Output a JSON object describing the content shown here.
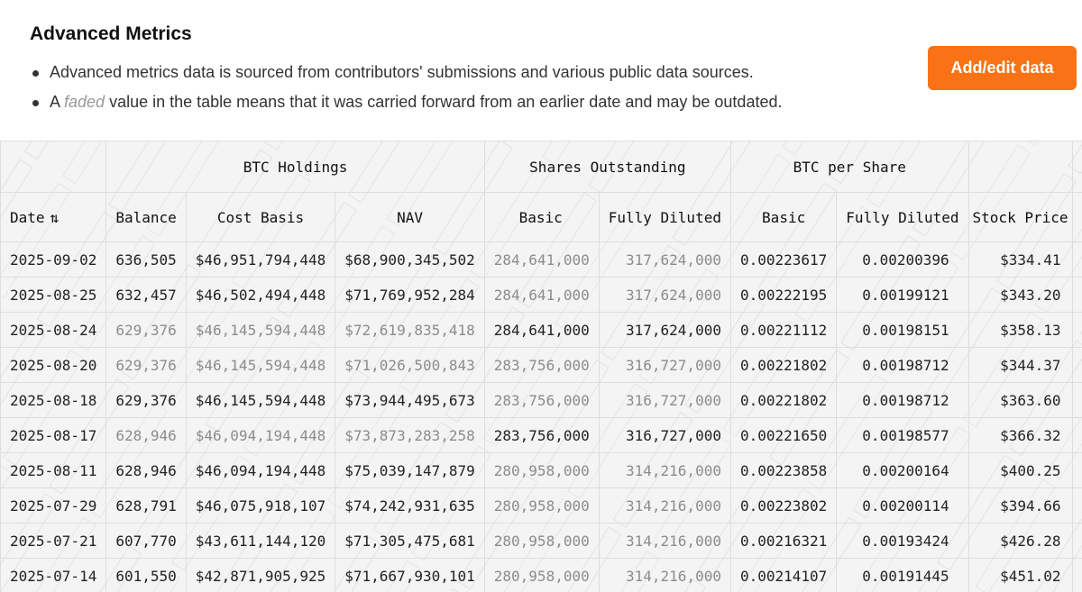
{
  "header": {
    "title": "Advanced Metrics",
    "note1": "Advanced metrics data is sourced from contributors' submissions and various public data sources.",
    "note2_prefix": "A ",
    "note2_faded": "faded",
    "note2_suffix": " value in the table means that it was carried forward from an earlier date and may be outdated."
  },
  "actions": {
    "add_edit_label": "Add/edit data"
  },
  "table": {
    "groups": {
      "btc_holdings": "BTC Holdings",
      "shares_outstanding": "Shares Outstanding",
      "btc_per_share": "BTC per Share"
    },
    "columns": {
      "date": "Date",
      "balance": "Balance",
      "cost_basis": "Cost Basis",
      "nav": "NAV",
      "shares_basic": "Basic",
      "shares_fully_diluted": "Fully Diluted",
      "bps_basic": "Basic",
      "bps_fully_diluted": "Fully Diluted",
      "stock_price": "Stock Price",
      "overflow": "$"
    },
    "sort_icon": "sort-arrows-icon",
    "rows": [
      {
        "date": "2025-09-02",
        "balance": "636,505",
        "cost_basis": "$46,951,794,448",
        "nav": "$68,900,345,502",
        "shares_basic": "284,641,000",
        "shares_fd": "317,624,000",
        "bps_basic": "0.00223617",
        "bps_fd": "0.00200396",
        "price": "$334.41",
        "faded": [
          "shares_basic",
          "shares_fd"
        ]
      },
      {
        "date": "2025-08-25",
        "balance": "632,457",
        "cost_basis": "$46,502,494,448",
        "nav": "$71,769,952,284",
        "shares_basic": "284,641,000",
        "shares_fd": "317,624,000",
        "bps_basic": "0.00222195",
        "bps_fd": "0.00199121",
        "price": "$343.20",
        "faded": [
          "shares_basic",
          "shares_fd"
        ]
      },
      {
        "date": "2025-08-24",
        "balance": "629,376",
        "cost_basis": "$46,145,594,448",
        "nav": "$72,619,835,418",
        "shares_basic": "284,641,000",
        "shares_fd": "317,624,000",
        "bps_basic": "0.00221112",
        "bps_fd": "0.00198151",
        "price": "$358.13",
        "faded": [
          "balance",
          "cost_basis",
          "nav"
        ]
      },
      {
        "date": "2025-08-20",
        "balance": "629,376",
        "cost_basis": "$46,145,594,448",
        "nav": "$71,026,500,843",
        "shares_basic": "283,756,000",
        "shares_fd": "316,727,000",
        "bps_basic": "0.00221802",
        "bps_fd": "0.00198712",
        "price": "$344.37",
        "faded": [
          "balance",
          "cost_basis",
          "nav",
          "shares_basic",
          "shares_fd"
        ]
      },
      {
        "date": "2025-08-18",
        "balance": "629,376",
        "cost_basis": "$46,145,594,448",
        "nav": "$73,944,495,673",
        "shares_basic": "283,756,000",
        "shares_fd": "316,727,000",
        "bps_basic": "0.00221802",
        "bps_fd": "0.00198712",
        "price": "$363.60",
        "faded": [
          "shares_basic",
          "shares_fd"
        ]
      },
      {
        "date": "2025-08-17",
        "balance": "628,946",
        "cost_basis": "$46,094,194,448",
        "nav": "$73,873,283,258",
        "shares_basic": "283,756,000",
        "shares_fd": "316,727,000",
        "bps_basic": "0.00221650",
        "bps_fd": "0.00198577",
        "price": "$366.32",
        "faded": [
          "balance",
          "cost_basis",
          "nav"
        ]
      },
      {
        "date": "2025-08-11",
        "balance": "628,946",
        "cost_basis": "$46,094,194,448",
        "nav": "$75,039,147,879",
        "shares_basic": "280,958,000",
        "shares_fd": "314,216,000",
        "bps_basic": "0.00223858",
        "bps_fd": "0.00200164",
        "price": "$400.25",
        "faded": [
          "shares_basic",
          "shares_fd"
        ]
      },
      {
        "date": "2025-07-29",
        "balance": "628,791",
        "cost_basis": "$46,075,918,107",
        "nav": "$74,242,931,635",
        "shares_basic": "280,958,000",
        "shares_fd": "314,216,000",
        "bps_basic": "0.00223802",
        "bps_fd": "0.00200114",
        "price": "$394.66",
        "faded": [
          "shares_basic",
          "shares_fd"
        ]
      },
      {
        "date": "2025-07-21",
        "balance": "607,770",
        "cost_basis": "$43,611,144,120",
        "nav": "$71,305,475,681",
        "shares_basic": "280,958,000",
        "shares_fd": "314,216,000",
        "bps_basic": "0.00216321",
        "bps_fd": "0.00193424",
        "price": "$426.28",
        "faded": [
          "shares_basic",
          "shares_fd"
        ]
      },
      {
        "date": "2025-07-14",
        "balance": "601,550",
        "cost_basis": "$42,871,905,925",
        "nav": "$71,667,930,101",
        "shares_basic": "280,958,000",
        "shares_fd": "314,216,000",
        "bps_basic": "0.00214107",
        "bps_fd": "0.00191445",
        "price": "$451.02",
        "faded": [
          "shares_basic",
          "shares_fd"
        ]
      }
    ]
  },
  "colors": {
    "accent": "#f97316",
    "faded_text": "#8c8c8c",
    "table_bg": "#f4f4f4"
  }
}
